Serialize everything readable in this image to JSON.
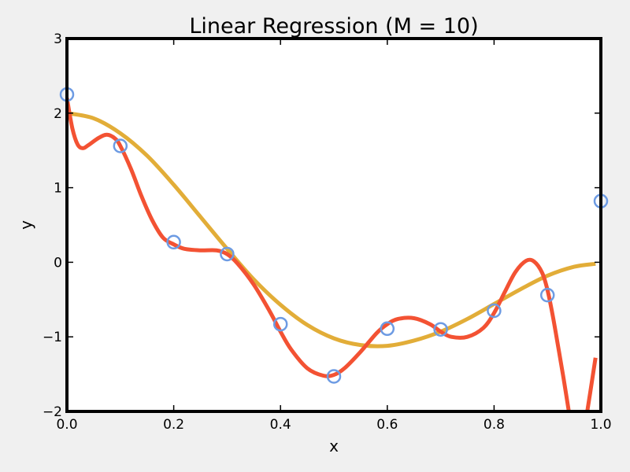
{
  "chart_data": {
    "type": "line",
    "title": "Linear Regression (M = 10)",
    "xlabel": "x",
    "ylabel": "y",
    "xlim": [
      0.0,
      1.0
    ],
    "ylim": [
      -2,
      3
    ],
    "grid": false,
    "x_ticks": [
      {
        "value": 0.0,
        "label": "0.0"
      },
      {
        "value": 0.2,
        "label": "0.2"
      },
      {
        "value": 0.4,
        "label": "0.4"
      },
      {
        "value": 0.6,
        "label": "0.6"
      },
      {
        "value": 0.8,
        "label": "0.8"
      },
      {
        "value": 1.0,
        "label": "1.0"
      }
    ],
    "y_ticks": [
      {
        "value": -2,
        "label": "−2"
      },
      {
        "value": -1,
        "label": "−1"
      },
      {
        "value": 0,
        "label": "0"
      },
      {
        "value": 1,
        "label": "1"
      },
      {
        "value": 2,
        "label": "2"
      },
      {
        "value": 3,
        "label": "3"
      }
    ],
    "colors": {
      "points": "#6d9be3",
      "fit": "#f35233",
      "true": "#e2ad38"
    },
    "points": {
      "x": [
        0.0,
        0.1,
        0.2,
        0.3,
        0.4,
        0.5,
        0.6,
        0.7,
        0.8,
        0.9,
        1.0
      ],
      "y": [
        2.25,
        1.56,
        0.27,
        0.11,
        -0.83,
        -1.53,
        -0.89,
        -0.9,
        -0.65,
        -0.44,
        0.82
      ]
    },
    "series": [
      {
        "style": "true",
        "x": [
          0.0,
          0.05,
          0.1,
          0.15,
          0.2,
          0.25,
          0.3,
          0.35,
          0.4,
          0.45,
          0.5,
          0.55,
          0.6,
          0.65,
          0.7,
          0.75,
          0.8,
          0.85,
          0.9,
          0.95,
          0.99
        ],
        "y": [
          2.0,
          1.93,
          1.73,
          1.43,
          1.04,
          0.61,
          0.18,
          -0.23,
          -0.57,
          -0.84,
          -1.02,
          -1.11,
          -1.12,
          -1.05,
          -0.93,
          -0.76,
          -0.56,
          -0.36,
          -0.18,
          -0.06,
          -0.02
        ]
      },
      {
        "style": "fit",
        "x": [
          0.0,
          0.01,
          0.02,
          0.03,
          0.04,
          0.06,
          0.075,
          0.09,
          0.1,
          0.12,
          0.14,
          0.16,
          0.18,
          0.2,
          0.22,
          0.25,
          0.28,
          0.3,
          0.32,
          0.35,
          0.38,
          0.4,
          0.42,
          0.45,
          0.48,
          0.5,
          0.52,
          0.55,
          0.58,
          0.6,
          0.62,
          0.65,
          0.68,
          0.7,
          0.72,
          0.75,
          0.78,
          0.8,
          0.82,
          0.84,
          0.86,
          0.875,
          0.89,
          0.9,
          0.91,
          0.92,
          0.93,
          0.94
        ],
        "y": [
          2.2,
          1.8,
          1.58,
          1.53,
          1.57,
          1.67,
          1.71,
          1.66,
          1.56,
          1.25,
          0.88,
          0.56,
          0.33,
          0.24,
          0.18,
          0.16,
          0.16,
          0.11,
          -0.02,
          -0.3,
          -0.66,
          -0.93,
          -1.17,
          -1.42,
          -1.52,
          -1.51,
          -1.42,
          -1.2,
          -0.95,
          -0.83,
          -0.76,
          -0.75,
          -0.83,
          -0.93,
          -1.0,
          -1.0,
          -0.88,
          -0.68,
          -0.4,
          -0.13,
          0.02,
          0.01,
          -0.14,
          -0.37,
          -0.72,
          -1.13,
          -1.55,
          -2.0
        ]
      },
      {
        "style": "fit",
        "x": [
          0.9745,
          0.98,
          0.99
        ],
        "y": [
          -2.0,
          -1.75,
          -1.28
        ]
      }
    ]
  }
}
